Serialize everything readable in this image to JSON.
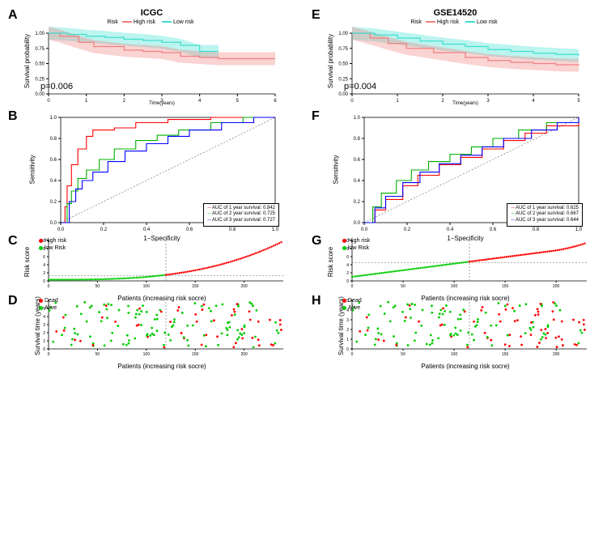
{
  "colors": {
    "high_risk": "#f08080",
    "high_risk_solid": "#ff0000",
    "low_risk": "#40e0d0",
    "low_risk_solid": "#00cc00",
    "green_line": "#00b000",
    "blue_line": "#0000ff",
    "axis": "#000000",
    "dash": "#666666"
  },
  "panelA": {
    "label": "A",
    "title": "ICGC",
    "legend_title": "Risk",
    "high_label": "High risk",
    "low_label": "Low risk",
    "p_value": "p=0.006",
    "y_label": "Survival probability",
    "x_label": "Time(years)",
    "x_range": [
      0,
      6
    ],
    "x_ticks": [
      0,
      1,
      2,
      3,
      4,
      5,
      6
    ],
    "y_ticks": [
      0.0,
      0.25,
      0.5,
      0.75,
      1.0
    ],
    "high_curve": [
      [
        0,
        1.0
      ],
      [
        0.3,
        0.95
      ],
      [
        0.8,
        0.85
      ],
      [
        1.2,
        0.78
      ],
      [
        2.0,
        0.72
      ],
      [
        2.5,
        0.7
      ],
      [
        3.0,
        0.68
      ],
      [
        3.5,
        0.62
      ],
      [
        4.0,
        0.6
      ],
      [
        4.5,
        0.58
      ],
      [
        6.0,
        0.58
      ]
    ],
    "low_curve": [
      [
        0,
        1.0
      ],
      [
        0.5,
        0.98
      ],
      [
        1.0,
        0.95
      ],
      [
        1.5,
        0.93
      ],
      [
        2.0,
        0.9
      ],
      [
        2.5,
        0.88
      ],
      [
        3.0,
        0.85
      ],
      [
        3.5,
        0.8
      ],
      [
        4.0,
        0.7
      ],
      [
        4.5,
        0.7
      ]
    ]
  },
  "panelE": {
    "label": "E",
    "title": "GSE14520",
    "legend_title": "Risk",
    "high_label": "High risk",
    "low_label": "Low risk",
    "p_value": "p=0.004",
    "y_label": "Survival probability",
    "x_label": "Time(years)",
    "x_range": [
      0,
      5
    ],
    "x_ticks": [
      0,
      1,
      2,
      3,
      4,
      5
    ],
    "y_ticks": [
      0.0,
      0.25,
      0.5,
      0.75,
      1.0
    ],
    "high_curve": [
      [
        0,
        1.0
      ],
      [
        0.4,
        0.92
      ],
      [
        0.8,
        0.83
      ],
      [
        1.2,
        0.75
      ],
      [
        1.8,
        0.68
      ],
      [
        2.5,
        0.6
      ],
      [
        3.0,
        0.55
      ],
      [
        3.5,
        0.52
      ],
      [
        4.0,
        0.5
      ],
      [
        4.5,
        0.48
      ],
      [
        5.0,
        0.47
      ]
    ],
    "low_curve": [
      [
        0,
        1.0
      ],
      [
        0.5,
        0.97
      ],
      [
        1.0,
        0.92
      ],
      [
        1.5,
        0.87
      ],
      [
        2.0,
        0.82
      ],
      [
        2.5,
        0.78
      ],
      [
        3.0,
        0.73
      ],
      [
        3.5,
        0.7
      ],
      [
        4.0,
        0.67
      ],
      [
        4.5,
        0.65
      ],
      [
        5.0,
        0.63
      ]
    ]
  },
  "panelB": {
    "label": "B",
    "y_label": "Sensitivity",
    "x_label": "1−Specificity",
    "ticks": [
      0.0,
      0.2,
      0.4,
      0.6,
      0.8,
      1.0
    ],
    "auc1_label": "AUC of 1 year survival:  0.842",
    "auc2_label": "AUC of 2 year survival:  0.725",
    "auc3_label": "AUC of 3 year survival:  0.727",
    "curve1": [
      [
        0,
        0
      ],
      [
        0.02,
        0.15
      ],
      [
        0.03,
        0.35
      ],
      [
        0.05,
        0.55
      ],
      [
        0.08,
        0.7
      ],
      [
        0.12,
        0.82
      ],
      [
        0.15,
        0.88
      ],
      [
        0.25,
        0.9
      ],
      [
        0.35,
        0.95
      ],
      [
        0.5,
        0.98
      ],
      [
        0.7,
        1.0
      ],
      [
        1.0,
        1.0
      ]
    ],
    "curve2": [
      [
        0,
        0
      ],
      [
        0.03,
        0.18
      ],
      [
        0.05,
        0.3
      ],
      [
        0.08,
        0.42
      ],
      [
        0.12,
        0.5
      ],
      [
        0.18,
        0.6
      ],
      [
        0.25,
        0.7
      ],
      [
        0.35,
        0.78
      ],
      [
        0.45,
        0.83
      ],
      [
        0.55,
        0.88
      ],
      [
        0.7,
        0.95
      ],
      [
        0.85,
        1.0
      ],
      [
        1.0,
        1.0
      ]
    ],
    "curve3": [
      [
        0,
        0
      ],
      [
        0.04,
        0.2
      ],
      [
        0.07,
        0.32
      ],
      [
        0.1,
        0.4
      ],
      [
        0.15,
        0.48
      ],
      [
        0.22,
        0.58
      ],
      [
        0.3,
        0.68
      ],
      [
        0.4,
        0.75
      ],
      [
        0.5,
        0.82
      ],
      [
        0.6,
        0.88
      ],
      [
        0.75,
        0.95
      ],
      [
        0.9,
        1.0
      ],
      [
        1.0,
        1.0
      ]
    ]
  },
  "panelF": {
    "label": "F",
    "y_label": "Sensitivity",
    "x_label": "1−Specificity",
    "ticks": [
      0.0,
      0.2,
      0.4,
      0.6,
      0.8,
      1.0
    ],
    "auc1_label": "AUC of 1 year survival:  0.625",
    "auc2_label": "AUC of 2 year survival:  0.667",
    "auc3_label": "AUC of 3 year survival:  0.644",
    "curve1": [
      [
        0,
        0
      ],
      [
        0.05,
        0.12
      ],
      [
        0.1,
        0.22
      ],
      [
        0.18,
        0.35
      ],
      [
        0.25,
        0.45
      ],
      [
        0.35,
        0.55
      ],
      [
        0.45,
        0.62
      ],
      [
        0.55,
        0.7
      ],
      [
        0.65,
        0.78
      ],
      [
        0.75,
        0.85
      ],
      [
        0.85,
        0.92
      ],
      [
        1.0,
        1.0
      ]
    ],
    "curve2": [
      [
        0,
        0
      ],
      [
        0.04,
        0.15
      ],
      [
        0.08,
        0.28
      ],
      [
        0.15,
        0.4
      ],
      [
        0.22,
        0.5
      ],
      [
        0.3,
        0.58
      ],
      [
        0.4,
        0.65
      ],
      [
        0.5,
        0.72
      ],
      [
        0.6,
        0.8
      ],
      [
        0.72,
        0.88
      ],
      [
        0.85,
        0.95
      ],
      [
        1.0,
        1.0
      ]
    ],
    "curve3": [
      [
        0,
        0
      ],
      [
        0.05,
        0.14
      ],
      [
        0.1,
        0.25
      ],
      [
        0.18,
        0.38
      ],
      [
        0.26,
        0.48
      ],
      [
        0.35,
        0.56
      ],
      [
        0.45,
        0.64
      ],
      [
        0.55,
        0.72
      ],
      [
        0.65,
        0.8
      ],
      [
        0.78,
        0.88
      ],
      [
        0.9,
        0.95
      ],
      [
        1.0,
        1.0
      ]
    ]
  },
  "panelC": {
    "label": "C",
    "y_label": "Risk score",
    "x_label": "Patients (increasing risk socre)",
    "high_label": "High risk",
    "low_label": "low Risk",
    "x_max": 240,
    "x_ticks": [
      0,
      50,
      100,
      150,
      200
    ],
    "y_max": 10,
    "y_ticks": [
      0,
      2,
      4,
      6,
      8,
      10
    ],
    "cutoff_x": 120,
    "cutoff_y": 1.3
  },
  "panelG": {
    "label": "G",
    "y_label": "Risk score",
    "x_label": "Patients (increasing risk socre)",
    "high_label": "High risk",
    "low_label": "low Risk",
    "x_max": 230,
    "x_ticks": [
      0,
      50,
      100,
      150,
      200
    ],
    "y_max": 10,
    "y_ticks": [
      0,
      2,
      4,
      6,
      8,
      10
    ],
    "cutoff_x": 115,
    "cutoff_y": 4.5
  },
  "panelD": {
    "label": "D",
    "y_label": "Survival time (years)",
    "x_label": "Patients (increasing risk socre)",
    "dead_label": "Dead",
    "alive_label": "Alive",
    "x_max": 240,
    "x_ticks": [
      0,
      50,
      100,
      150,
      200
    ],
    "y_max": 6,
    "y_ticks": [
      0,
      1,
      2,
      3,
      4,
      5
    ],
    "cutoff_x": 120
  },
  "panelH": {
    "label": "H",
    "y_label": "Survival time (years)",
    "x_label": "Patients (increasing risk socre)",
    "dead_label": "Dead",
    "alive_label": "Alive",
    "x_max": 230,
    "x_ticks": [
      0,
      50,
      100,
      150,
      200
    ],
    "y_max": 5,
    "y_ticks": [
      0,
      1,
      2,
      3,
      4,
      5
    ],
    "cutoff_x": 115
  }
}
